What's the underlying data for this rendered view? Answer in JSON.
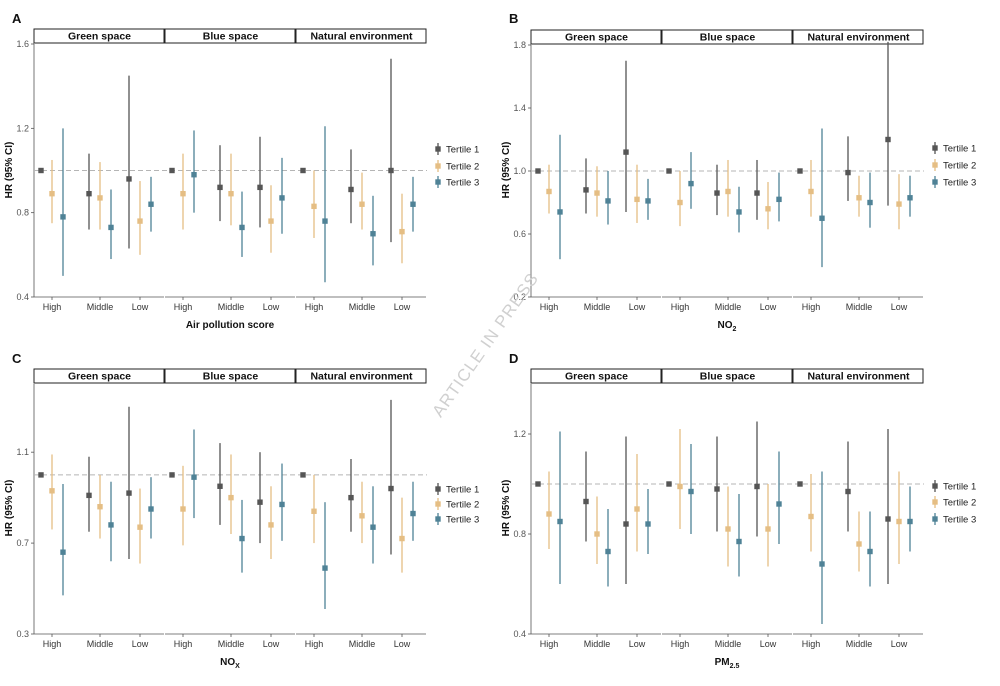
{
  "watermark": "ARTICLE IN PRESS",
  "colors": {
    "tertile_1": "#555555",
    "tertile_2": "#E5BE84",
    "tertile_3": "#4F8296",
    "reference_line": "#b5b5b5"
  },
  "chart_data": [
    {
      "panel": "A",
      "type": "scatter",
      "title": "",
      "ylabel": "HR (95% CI)",
      "xlabel": "Air pollution score",
      "yticks": [
        "0.4",
        "0.8",
        "1.2",
        "1.6"
      ],
      "ylim": [
        0.4,
        1.6
      ],
      "reference_value": 1.0,
      "facets": [
        "Green space",
        "Blue space",
        "Natural environment"
      ],
      "categories": [
        "High",
        "Middle",
        "Low"
      ],
      "series": [
        {
          "name": "Tertile 1",
          "points": [
            [
              [
                1.0,
                1.0,
                1.0
              ],
              [
                0.89,
                0.72,
                1.08
              ],
              [
                0.96,
                0.63,
                1.45
              ]
            ],
            [
              [
                1.0,
                1.0,
                1.0
              ],
              [
                0.92,
                0.76,
                1.12
              ],
              [
                0.92,
                0.73,
                1.16
              ]
            ],
            [
              [
                1.0,
                1.0,
                1.0
              ],
              [
                0.91,
                0.75,
                1.1
              ],
              [
                1.0,
                0.66,
                1.53
              ]
            ]
          ]
        },
        {
          "name": "Tertile 2",
          "points": [
            [
              [
                0.89,
                0.75,
                1.05
              ],
              [
                0.87,
                0.72,
                1.04
              ],
              [
                0.76,
                0.6,
                0.95
              ]
            ],
            [
              [
                0.89,
                0.72,
                1.08
              ],
              [
                0.89,
                0.74,
                1.08
              ],
              [
                0.76,
                0.61,
                0.93
              ]
            ],
            [
              [
                0.83,
                0.68,
                1.0
              ],
              [
                0.84,
                0.72,
                0.99
              ],
              [
                0.71,
                0.56,
                0.89
              ]
            ]
          ]
        },
        {
          "name": "Tertile 3",
          "points": [
            [
              [
                0.78,
                0.5,
                1.2
              ],
              [
                0.73,
                0.58,
                0.91
              ],
              [
                0.84,
                0.71,
                0.97
              ]
            ],
            [
              [
                0.98,
                0.8,
                1.19
              ],
              [
                0.73,
                0.59,
                0.9
              ],
              [
                0.87,
                0.7,
                1.06
              ]
            ],
            [
              [
                0.76,
                0.47,
                1.21
              ],
              [
                0.7,
                0.55,
                0.88
              ],
              [
                0.84,
                0.71,
                0.97
              ]
            ]
          ]
        }
      ],
      "legend": {
        "position": "right",
        "entries": [
          "Tertile 1",
          "Tertile 2",
          "Tertile 3"
        ]
      }
    },
    {
      "panel": "B",
      "type": "scatter",
      "title": "",
      "ylabel": "HR (95% CI)",
      "xlabel": "NO",
      "xlabel_sub": "2",
      "yticks": [
        "0.2",
        "0.6",
        "1.0",
        "1.4",
        "1.8"
      ],
      "ylim": [
        0.2,
        1.8
      ],
      "reference_value": 1.0,
      "facets": [
        "Green space",
        "Blue space",
        "Natural environment"
      ],
      "categories": [
        "High",
        "Middle",
        "Low"
      ],
      "series": [
        {
          "name": "Tertile 1",
          "points": [
            [
              [
                1.0,
                1.0,
                1.0
              ],
              [
                0.88,
                0.73,
                1.08
              ],
              [
                1.12,
                0.74,
                1.7
              ]
            ],
            [
              [
                1.0,
                1.0,
                1.0
              ],
              [
                0.86,
                0.72,
                1.04
              ],
              [
                0.86,
                0.69,
                1.07
              ]
            ],
            [
              [
                1.0,
                1.0,
                1.0
              ],
              [
                0.99,
                0.81,
                1.22
              ],
              [
                1.2,
                0.78,
                1.82
              ]
            ]
          ]
        },
        {
          "name": "Tertile 2",
          "points": [
            [
              [
                0.87,
                0.73,
                1.04
              ],
              [
                0.86,
                0.71,
                1.03
              ],
              [
                0.82,
                0.67,
                1.04
              ]
            ],
            [
              [
                0.8,
                0.65,
                1.0
              ],
              [
                0.87,
                0.71,
                1.07
              ],
              [
                0.76,
                0.63,
                0.93
              ]
            ],
            [
              [
                0.87,
                0.71,
                1.07
              ],
              [
                0.83,
                0.71,
                0.97
              ],
              [
                0.79,
                0.63,
                0.98
              ]
            ]
          ]
        },
        {
          "name": "Tertile 3",
          "points": [
            [
              [
                0.74,
                0.44,
                1.23
              ],
              [
                0.81,
                0.66,
                1.0
              ],
              [
                0.81,
                0.69,
                0.95
              ]
            ],
            [
              [
                0.92,
                0.76,
                1.12
              ],
              [
                0.74,
                0.61,
                0.9
              ],
              [
                0.82,
                0.68,
                0.99
              ]
            ],
            [
              [
                0.7,
                0.39,
                1.27
              ],
              [
                0.8,
                0.64,
                0.99
              ],
              [
                0.83,
                0.71,
                0.97
              ]
            ]
          ]
        }
      ],
      "legend": {
        "position": "right",
        "entries": [
          "Tertile 1",
          "Tertile 2",
          "Tertile 3"
        ]
      }
    },
    {
      "panel": "C",
      "type": "scatter",
      "title": "",
      "ylabel": "HR (95% CI)",
      "xlabel": "NO",
      "xlabel_sub": "X",
      "yticks": [
        "0.3",
        "0.7",
        "1.1"
      ],
      "ylim": [
        0.3,
        1.4
      ],
      "reference_value": 1.0,
      "facets": [
        "Green space",
        "Blue space",
        "Natural environment"
      ],
      "categories": [
        "High",
        "Middle",
        "Low"
      ],
      "series": [
        {
          "name": "Tertile 1",
          "points": [
            [
              [
                1.0,
                1.0,
                1.0
              ],
              [
                0.91,
                0.75,
                1.08
              ],
              [
                0.92,
                0.63,
                1.3
              ]
            ],
            [
              [
                1.0,
                1.0,
                1.0
              ],
              [
                0.95,
                0.78,
                1.14
              ],
              [
                0.88,
                0.7,
                1.1
              ]
            ],
            [
              [
                1.0,
                1.0,
                1.0
              ],
              [
                0.9,
                0.75,
                1.07
              ],
              [
                0.94,
                0.65,
                1.33
              ]
            ]
          ]
        },
        {
          "name": "Tertile 2",
          "points": [
            [
              [
                0.93,
                0.76,
                1.09
              ],
              [
                0.86,
                0.72,
                1.0
              ],
              [
                0.77,
                0.61,
                0.94
              ]
            ],
            [
              [
                0.85,
                0.69,
                1.04
              ],
              [
                0.9,
                0.74,
                1.09
              ],
              [
                0.78,
                0.63,
                0.95
              ]
            ],
            [
              [
                0.84,
                0.7,
                1.0
              ],
              [
                0.82,
                0.7,
                0.97
              ],
              [
                0.72,
                0.57,
                0.9
              ]
            ]
          ]
        },
        {
          "name": "Tertile 3",
          "points": [
            [
              [
                0.66,
                0.47,
                0.96
              ],
              [
                0.78,
                0.62,
                0.97
              ],
              [
                0.85,
                0.72,
                0.99
              ]
            ],
            [
              [
                0.99,
                0.81,
                1.2
              ],
              [
                0.72,
                0.57,
                0.89
              ],
              [
                0.87,
                0.71,
                1.05
              ]
            ],
            [
              [
                0.59,
                0.41,
                0.88
              ],
              [
                0.77,
                0.61,
                0.95
              ],
              [
                0.83,
                0.71,
                0.97
              ]
            ]
          ]
        }
      ],
      "legend": {
        "position": "right",
        "entries": [
          "Tertile 1",
          "Tertile 2",
          "Tertile 3"
        ]
      }
    },
    {
      "panel": "D",
      "type": "scatter",
      "title": "",
      "ylabel": "HR (95% CI)",
      "xlabel": "PM",
      "xlabel_sub": "2.5",
      "yticks": [
        "0.4",
        "0.8",
        "1.2"
      ],
      "ylim": [
        0.4,
        1.4
      ],
      "reference_value": 1.0,
      "facets": [
        "Green space",
        "Blue space",
        "Natural environment"
      ],
      "categories": [
        "High",
        "Middle",
        "Low"
      ],
      "series": [
        {
          "name": "Tertile 1",
          "points": [
            [
              [
                1.0,
                1.0,
                1.0
              ],
              [
                0.93,
                0.77,
                1.13
              ],
              [
                0.84,
                0.6,
                1.19
              ]
            ],
            [
              [
                1.0,
                1.0,
                1.0
              ],
              [
                0.98,
                0.81,
                1.19
              ],
              [
                0.99,
                0.79,
                1.25
              ]
            ],
            [
              [
                1.0,
                1.0,
                1.0
              ],
              [
                0.97,
                0.81,
                1.17
              ],
              [
                0.86,
                0.6,
                1.22
              ]
            ]
          ]
        },
        {
          "name": "Tertile 2",
          "points": [
            [
              [
                0.88,
                0.74,
                1.05
              ],
              [
                0.8,
                0.68,
                0.95
              ],
              [
                0.9,
                0.73,
                1.12
              ]
            ],
            [
              [
                0.99,
                0.82,
                1.22
              ],
              [
                0.82,
                0.67,
                0.99
              ],
              [
                0.82,
                0.67,
                1.0
              ]
            ],
            [
              [
                0.87,
                0.73,
                1.04
              ],
              [
                0.76,
                0.65,
                0.89
              ],
              [
                0.85,
                0.68,
                1.05
              ]
            ]
          ]
        },
        {
          "name": "Tertile 3",
          "points": [
            [
              [
                0.85,
                0.6,
                1.21
              ],
              [
                0.73,
                0.59,
                0.9
              ],
              [
                0.84,
                0.72,
                0.98
              ]
            ],
            [
              [
                0.97,
                0.8,
                1.16
              ],
              [
                0.77,
                0.63,
                0.96
              ],
              [
                0.92,
                0.76,
                1.13
              ]
            ],
            [
              [
                0.68,
                0.44,
                1.05
              ],
              [
                0.73,
                0.59,
                0.89
              ],
              [
                0.85,
                0.73,
                0.99
              ]
            ]
          ]
        }
      ],
      "legend": {
        "position": "right",
        "entries": [
          "Tertile 1",
          "Tertile 2",
          "Tertile 3"
        ]
      }
    }
  ]
}
